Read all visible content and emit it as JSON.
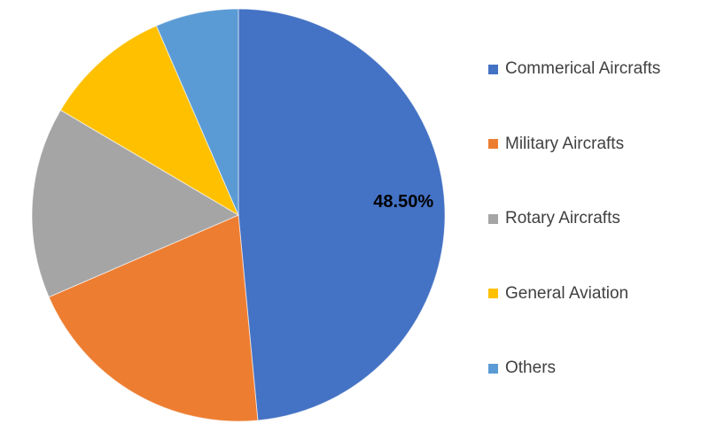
{
  "chart_data": {
    "type": "pie",
    "title": "",
    "legend_position": "right",
    "direction": "clockwise",
    "start_angle_deg": 0,
    "background_color": "#ffffff",
    "data_label_color": "#000000",
    "legend_text_color": "#404040",
    "categories": [
      "Commerical Aircrafts",
      "Military Aircrafts",
      "Rotary Aircrafts",
      "General Aviation",
      "Others"
    ],
    "values": [
      48.5,
      20,
      15,
      10,
      6.5
    ],
    "slices": [
      {
        "label": "Commerical Aircrafts",
        "value": 48.5,
        "color": "#4472C4",
        "data_label": "48.50%"
      },
      {
        "label": "Military Aircrafts",
        "value": 20,
        "color": "#ED7D31",
        "data_label": ""
      },
      {
        "label": "Rotary Aircrafts",
        "value": 15,
        "color": "#A5A5A5",
        "data_label": ""
      },
      {
        "label": "General Aviation",
        "value": 10,
        "color": "#FFC000",
        "data_label": ""
      },
      {
        "label": "Others",
        "value": 6.5,
        "color": "#5B9BD5",
        "data_label": ""
      }
    ]
  }
}
